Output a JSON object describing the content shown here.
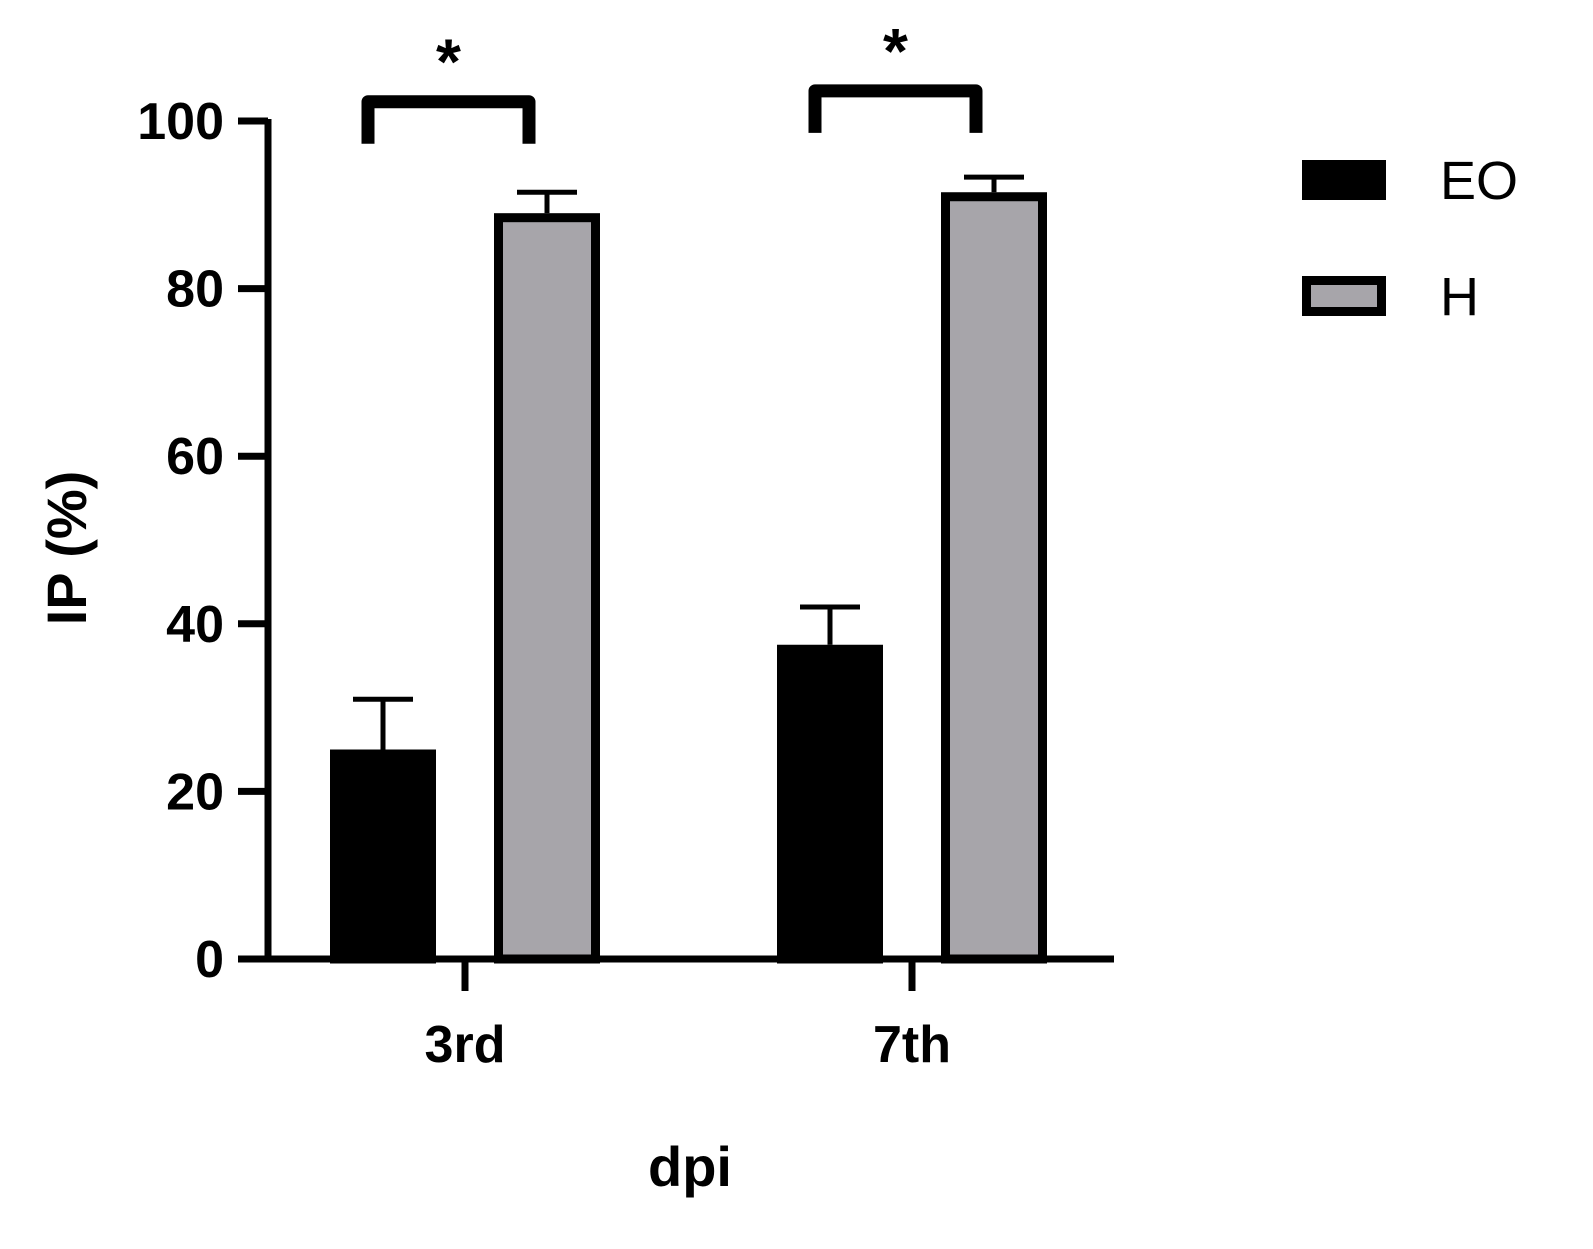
{
  "chart_data": {
    "type": "bar",
    "title": "",
    "xlabel": "dpi",
    "ylabel": "IP (%)",
    "categories": [
      "3rd",
      "7th"
    ],
    "ylim": [
      0,
      100
    ],
    "yticks": [
      "0",
      "20",
      "40",
      "60",
      "80",
      "100"
    ],
    "series": [
      {
        "name": "EO",
        "values": [
          25,
          37.5
        ],
        "errors": [
          6,
          4.5
        ],
        "color": "#000000"
      },
      {
        "name": "H",
        "values": [
          89,
          91.5
        ],
        "errors": [
          2.5,
          1.8
        ],
        "color": "#a7a5aa"
      }
    ],
    "significance": [
      {
        "category": "3rd",
        "label": "*"
      },
      {
        "category": "7th",
        "label": "*"
      }
    ],
    "legend_position": "top-right",
    "grid": false
  }
}
